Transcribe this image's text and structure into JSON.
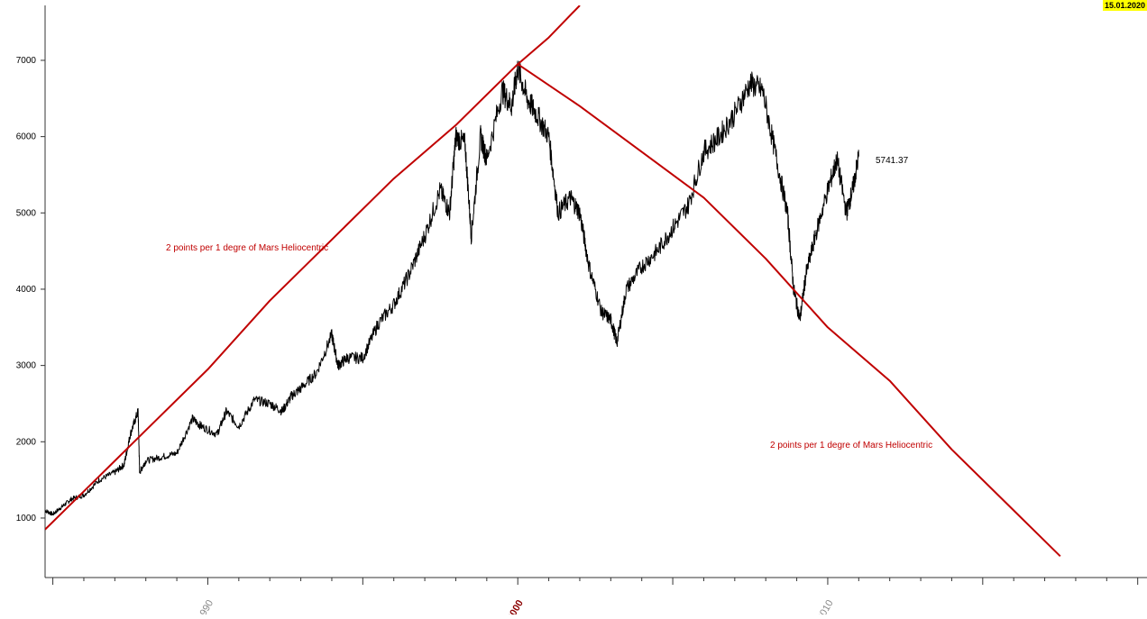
{
  "date_badge": "15.01.2020",
  "colors": {
    "price": "#000000",
    "mars_line": "#c00000",
    "axis": "#333333",
    "annotation": "#c00000",
    "year_2000": "#8b0000",
    "year_other": "#888888",
    "badge_bg": "#ffff00"
  },
  "chart_data": {
    "type": "line",
    "title": "",
    "xlabel": "",
    "ylabel": "",
    "xlim": [
      1984.75,
      2020.3
    ],
    "ylim": [
      220,
      7720
    ],
    "y_ticks": [
      1000,
      2000,
      3000,
      4000,
      5000,
      6000,
      7000
    ],
    "x_tick_labels": [
      {
        "year": 1990,
        "label": "1990"
      },
      {
        "year": 2000,
        "label": "2000"
      },
      {
        "year": 2010,
        "label": "2010"
      }
    ],
    "last_value_label": "5741.37",
    "annotations": [
      {
        "text": "2 points per 1 degre of Mars Heliocentric"
      },
      {
        "text": "2 points per 1 degre of Mars Heliocentric"
      }
    ],
    "series": [
      {
        "kind": "price",
        "x": [
          1984.75,
          1985.0,
          1985.3,
          1985.6,
          1986.0,
          1986.5,
          1987.0,
          1987.3,
          1987.5,
          1987.75,
          1987.8,
          1988.0,
          1988.5,
          1989.0,
          1989.5,
          1989.8,
          1990.3,
          1990.6,
          1991.0,
          1991.5,
          1992.0,
          1992.4,
          1992.7,
          1993.0,
          1993.5,
          1994.0,
          1994.2,
          1994.5,
          1995.0,
          1995.5,
          1996.0,
          1996.5,
          1997.0,
          1997.5,
          1997.8,
          1998.0,
          1998.3,
          1998.5,
          1998.8,
          1999.0,
          1999.5,
          1999.8,
          2000.0,
          2000.3,
          2000.6,
          2001.0,
          2001.3,
          2001.7,
          2002.0,
          2002.3,
          2002.7,
          2003.0,
          2003.2,
          2003.5,
          2004.0,
          2004.5,
          2005.0,
          2005.5,
          2006.0,
          2006.5,
          2007.0,
          2007.5,
          2007.9,
          2008.3,
          2008.7,
          2008.9,
          2009.1,
          2009.3,
          2009.6,
          2010.0,
          2010.3,
          2010.6,
          2010.8,
          2011.0
        ],
        "y": [
          1100,
          1050,
          1150,
          1250,
          1300,
          1500,
          1600,
          1700,
          2100,
          2400,
          1600,
          1750,
          1800,
          1850,
          2300,
          2200,
          2100,
          2400,
          2200,
          2550,
          2500,
          2400,
          2600,
          2700,
          2900,
          3400,
          3000,
          3100,
          3100,
          3550,
          3800,
          4200,
          4700,
          5300,
          5000,
          6000,
          5900,
          4700,
          6000,
          5700,
          6600,
          6400,
          6900,
          6500,
          6300,
          6000,
          5000,
          5200,
          5000,
          4300,
          3700,
          3600,
          3300,
          4000,
          4300,
          4500,
          4800,
          5100,
          5800,
          6000,
          6300,
          6700,
          6600,
          5800,
          5000,
          4000,
          3600,
          4200,
          4700,
          5300,
          5700,
          5000,
          5300,
          5741.37
        ]
      },
      {
        "kind": "mars_rising",
        "x": [
          1984.75,
          1986.0,
          1988.0,
          1990.0,
          1992.0,
          1994.0,
          1996.0,
          1998.0,
          2000.0,
          2001.0,
          2002.0
        ],
        "y": [
          850,
          1350,
          2150,
          2950,
          3850,
          4650,
          5450,
          6150,
          6950,
          7300,
          7720
        ]
      },
      {
        "kind": "mars_falling",
        "x": [
          2000.0,
          2002.0,
          2004.0,
          2006.0,
          2008.0,
          2010.0,
          2012.0,
          2014.0,
          2016.0,
          2017.5
        ],
        "y": [
          6950,
          6400,
          5800,
          5200,
          4400,
          3500,
          2800,
          1900,
          1100,
          500
        ]
      }
    ]
  }
}
